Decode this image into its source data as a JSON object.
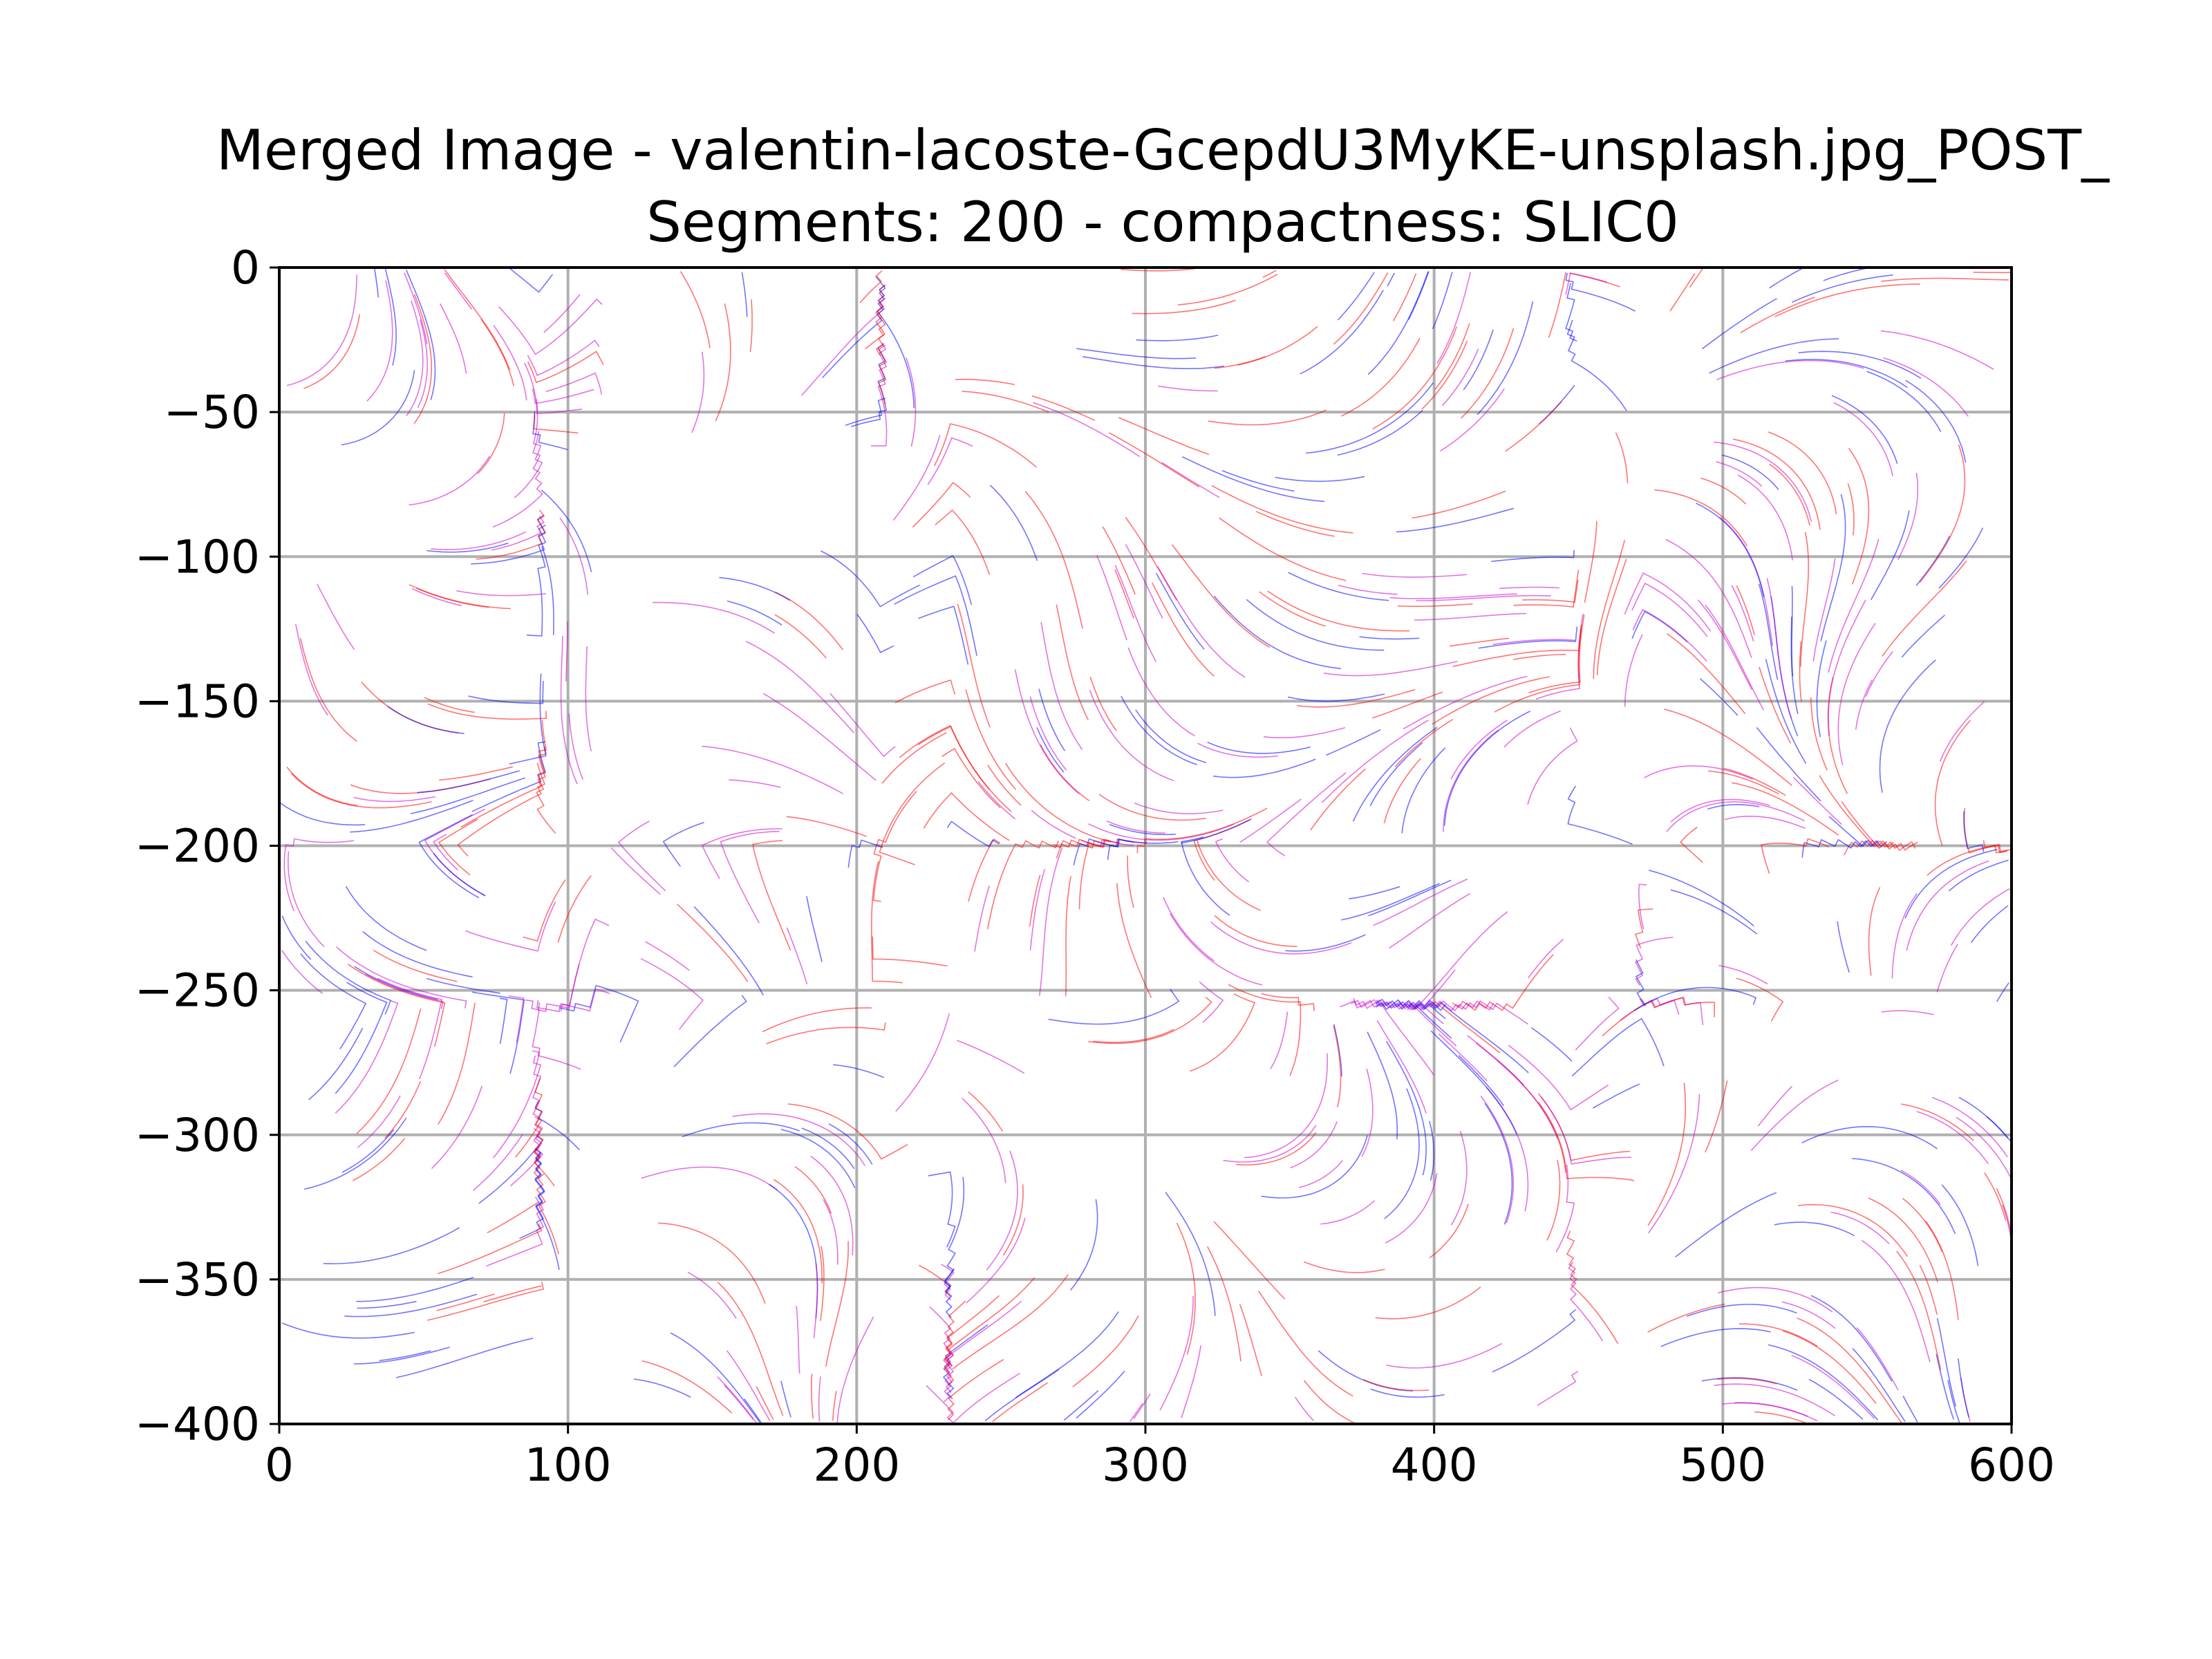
{
  "chart_data": {
    "type": "streamplot",
    "title_lines": [
      "Merged Image - valentin-lacoste-GcepdU3MyKE-unsplash.jpg_POST_",
      "Segments: 200 - compactness: SLIC0"
    ],
    "xlabel": "",
    "ylabel": "",
    "xlim": [
      0,
      600
    ],
    "ylim": [
      -400,
      0
    ],
    "x_ticks": [
      0,
      100,
      200,
      300,
      400,
      500,
      600
    ],
    "y_ticks": [
      0,
      -50,
      -100,
      -150,
      -200,
      -250,
      -300,
      -350,
      -400
    ],
    "x_tick_labels": [
      "0",
      "100",
      "200",
      "300",
      "400",
      "500",
      "600"
    ],
    "y_tick_labels": [
      "0",
      "−50",
      "−100",
      "−150",
      "−200",
      "−250",
      "−300",
      "−350",
      "−400"
    ],
    "grid": true,
    "legend": "none",
    "series_colors": [
      "#ff0000",
      "#0000ff",
      "#cc00cc"
    ]
  }
}
